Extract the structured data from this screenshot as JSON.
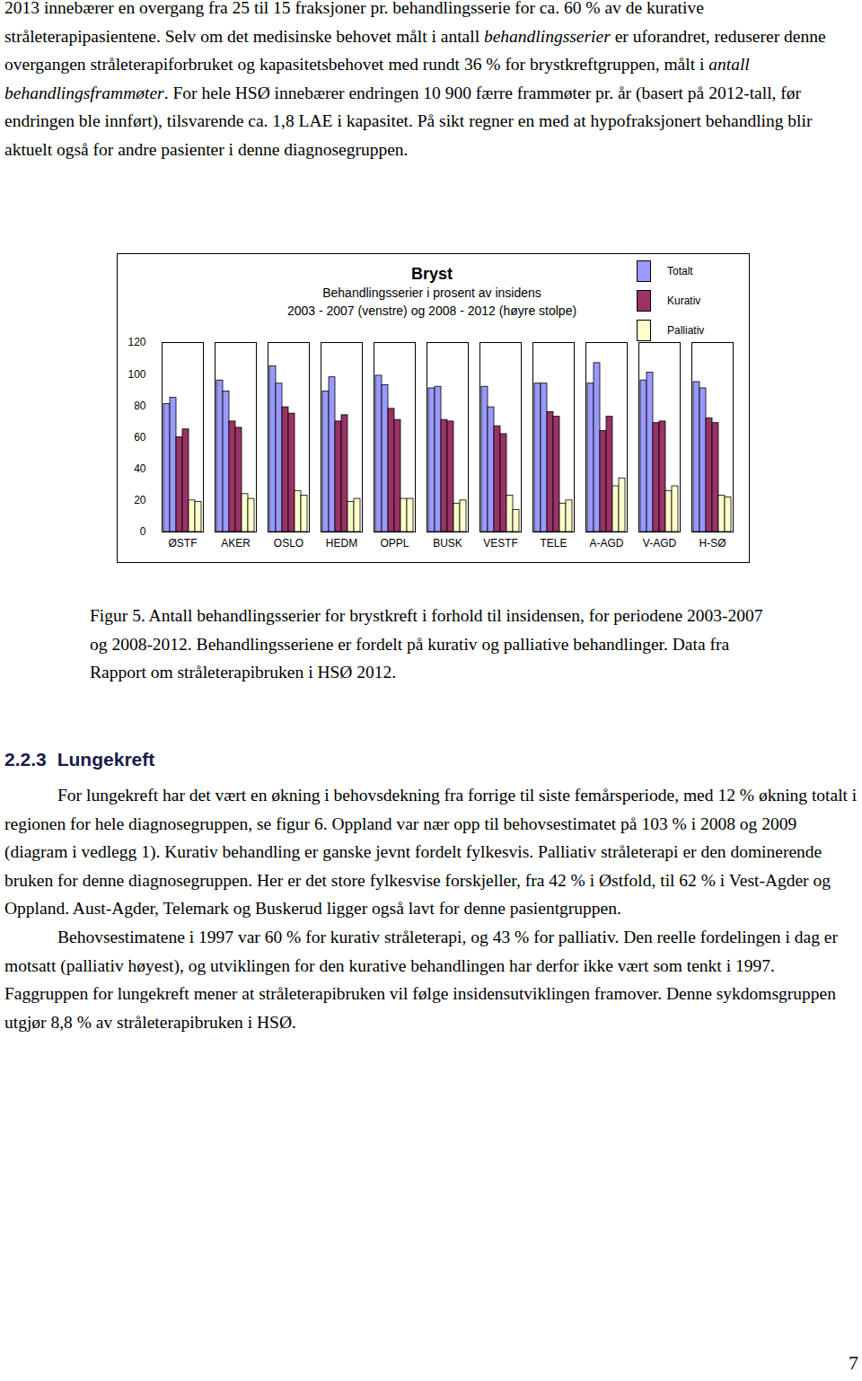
{
  "top_paragraph": [
    {
      "text": "2013 innebærer en overgang fra 25 til 15 fraksjoner pr. behandlingsserie for ca. 60 % av de kurative stråleterapipasientene. Selv om det medisinske behovet målt i antall "
    },
    {
      "text": "behandlingsserier",
      "italic": true
    },
    {
      "text": " er uforandret, reduserer denne overgangen stråleterapiforbruket og kapasitetsbehovet med rundt 36 % for brystkreftgruppen, målt i "
    },
    {
      "text": "antall behandlingsframmøter",
      "italic": true
    },
    {
      "text": ". For hele HSØ innebærer endringen 10 900 færre frammøter pr. år (basert på 2012-tall, før endringen ble innført), tilsvarende ca. 1,8 LAE i kapasitet. På sikt regner en med at hypofraksjonert behandling blir aktuelt også for andre pasienter i denne diagnosegruppen."
    }
  ],
  "chart_data": {
    "type": "bar",
    "title": "Bryst",
    "subtitle": [
      "Behandlingsserier i prosent av insidens",
      "2003 - 2007 (venstre) og 2008 - 2012 (høyre stolpe)"
    ],
    "categories": [
      "ØSTF",
      "AKER",
      "OSLO",
      "HEDM",
      "OPPL",
      "BUSK",
      "VESTF",
      "TELE",
      "A-AGD",
      "V-AGD",
      "H-SØ"
    ],
    "series": [
      {
        "name": "Totalt",
        "color": "#9999ff",
        "values": [
          [
            81,
            85
          ],
          [
            96,
            89
          ],
          [
            105,
            94
          ],
          [
            89,
            98
          ],
          [
            99,
            93
          ],
          [
            91,
            92
          ],
          [
            92,
            79
          ],
          [
            94,
            94
          ],
          [
            94,
            107
          ],
          [
            96,
            101
          ],
          [
            95,
            91
          ]
        ]
      },
      {
        "name": "Kurativ",
        "color": "#993366",
        "values": [
          [
            60,
            65
          ],
          [
            70,
            66
          ],
          [
            79,
            75
          ],
          [
            70,
            74
          ],
          [
            78,
            71
          ],
          [
            71,
            70
          ],
          [
            67,
            62
          ],
          [
            76,
            73
          ],
          [
            64,
            73
          ],
          [
            69,
            70
          ],
          [
            72,
            69
          ]
        ]
      },
      {
        "name": "Palliativ",
        "color": "#ffffcc",
        "values": [
          [
            20,
            19
          ],
          [
            24,
            21
          ],
          [
            26,
            23
          ],
          [
            19,
            21
          ],
          [
            21,
            21
          ],
          [
            18,
            20
          ],
          [
            23,
            14
          ],
          [
            18,
            20
          ],
          [
            29,
            34
          ],
          [
            26,
            29
          ],
          [
            23,
            22
          ]
        ]
      }
    ],
    "ylim": [
      0,
      120
    ],
    "yticks": [
      0,
      20,
      40,
      60,
      80,
      100,
      120
    ],
    "grid": false,
    "legend": "top-right"
  },
  "caption": "Figur 5. Antall behandlingsserier for brystkreft i forhold til insidensen, for periodene 2003-2007 og 2008-2012. Behandlingsseriene er fordelt på kurativ og palliative behandlinger. Data fra Rapport om stråleterapibruken i HSØ 2012.",
  "section": {
    "number": "2.2.3",
    "title": "Lungekreft",
    "paragraphs": [
      "For lungekreft har det vært en økning i behovsdekning fra forrige til siste femårsperiode, med 12 % økning totalt i regionen for hele diagnosegruppen, se figur 6. Oppland var nær opp til behovsestimatet på 103 % i 2008 og 2009 (diagram i vedlegg 1). Kurativ behandling er ganske jevnt fordelt fylkesvis. Palliativ stråleterapi er den dominerende bruken for denne diagnosegruppen. Her er det store fylkesvise forskjeller, fra 42 % i Østfold, til 62 % i Vest-Agder og Oppland. Aust-Agder, Telemark og Buskerud ligger også lavt for denne pasientgruppen.",
      "Behovsestimatene i 1997 var 60 % for kurativ stråleterapi, og 43 % for palliativ. Den reelle fordelingen i dag er motsatt (palliativ høyest), og utviklingen for den kurative behandlingen har derfor ikke vært som tenkt i 1997. Faggruppen for lungekreft mener at stråleterapibruken vil følge insidensutviklingen framover. Denne sykdomsgruppen utgjør 8,8 % av stråleterapibruken i HSØ."
    ]
  },
  "page_number": "7"
}
